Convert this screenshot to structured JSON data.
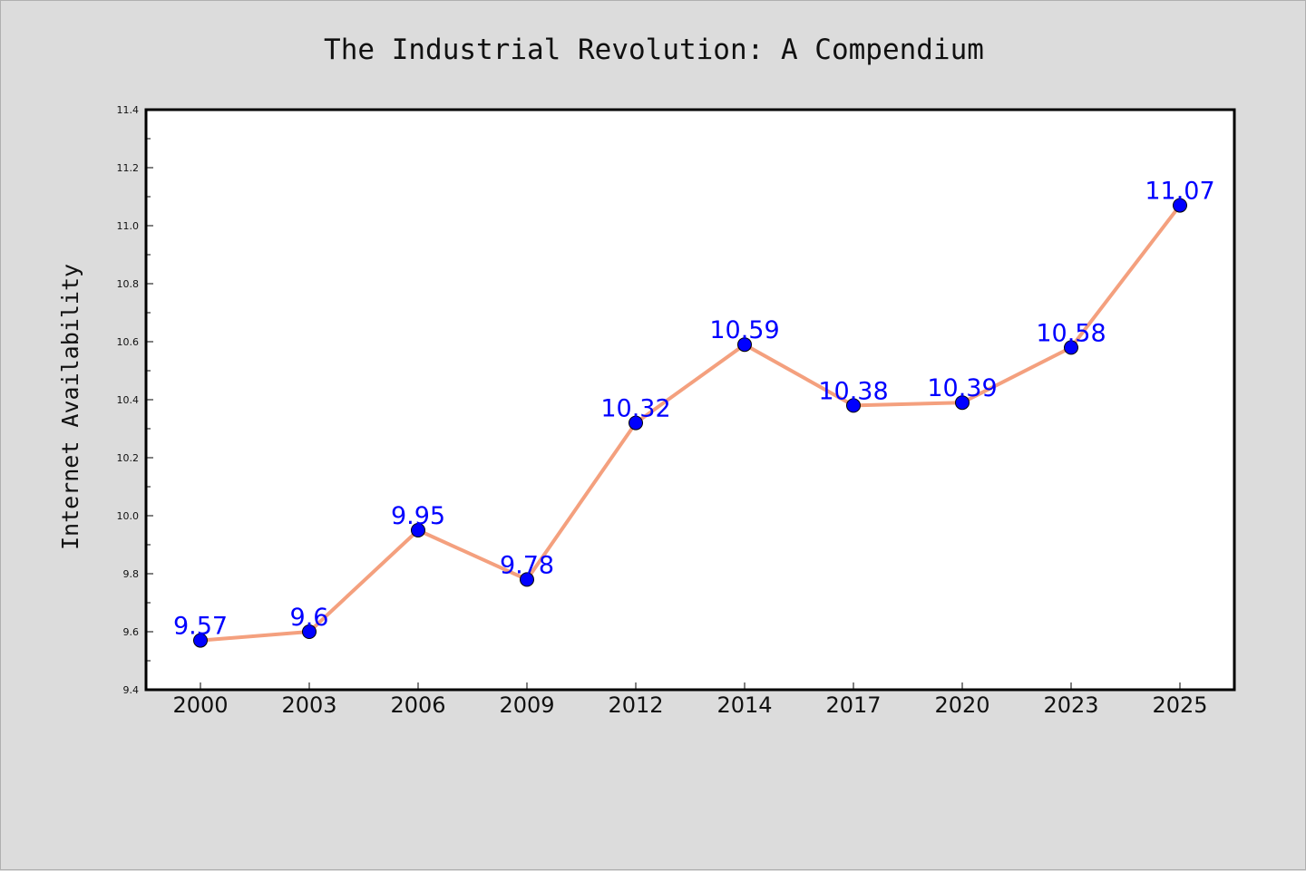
{
  "chart_data": {
    "type": "line",
    "title": "The Industrial Revolution: A Compendium",
    "xlabel": "",
    "ylabel": "Internet Availability",
    "categories": [
      "2000",
      "2003",
      "2006",
      "2009",
      "2012",
      "2014",
      "2017",
      "2020",
      "2023",
      "2025"
    ],
    "values": [
      9.57,
      9.6,
      9.95,
      9.78,
      10.32,
      10.59,
      10.38,
      10.39,
      10.58,
      11.07
    ],
    "data_labels": [
      "9.57",
      "9.6",
      "9.95",
      "9.78",
      "10.32",
      "10.59",
      "10.38",
      "10.39",
      "10.58",
      "11.07"
    ],
    "ylim": [
      9.4,
      11.4
    ],
    "yticks": [
      "9.4",
      "9.6",
      "9.8",
      "10.0",
      "10.2",
      "10.4",
      "10.6",
      "10.8",
      "11.0",
      "11.2",
      "11.4"
    ],
    "grid": false,
    "legend": "none",
    "colors": {
      "line": "#f4a07e",
      "marker": "#0000ff",
      "data_label": "#0000ff",
      "plot_background": "#ffffff",
      "figure_background": "#dcdcdc"
    }
  }
}
